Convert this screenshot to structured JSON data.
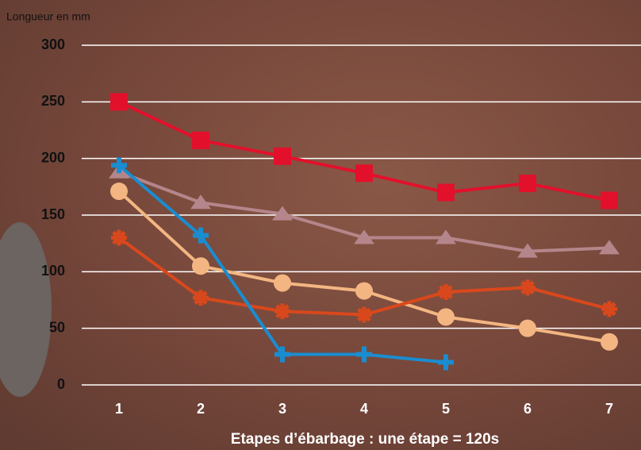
{
  "chart_data": {
    "type": "line",
    "y_label": "Longueur en mm",
    "x_label": "Etapes d’ébarbage : une étape = 120s",
    "categories": [
      "1",
      "2",
      "3",
      "4",
      "5",
      "6",
      "7"
    ],
    "ylim": [
      0,
      300
    ],
    "yticks": [
      0,
      50,
      100,
      150,
      200,
      250,
      300
    ],
    "grid": true,
    "series": [
      {
        "color": "#e3102c",
        "marker": "square",
        "values": [
          250,
          216,
          202,
          187,
          170,
          178,
          163
        ]
      },
      {
        "color": "#b4868b",
        "marker": "triangle",
        "values": [
          188,
          161,
          151,
          130,
          130,
          118,
          121
        ]
      },
      {
        "color": "#f3b682",
        "marker": "circle",
        "values": [
          171,
          105,
          90,
          83,
          60,
          50,
          38
        ]
      },
      {
        "color": "#d9481c",
        "marker": "star",
        "values": [
          130,
          77,
          65,
          62,
          82,
          86,
          67
        ]
      },
      {
        "color": "#1a8dd0",
        "marker": "cross",
        "values": [
          194,
          132,
          27,
          27,
          20,
          null,
          null
        ]
      }
    ]
  }
}
